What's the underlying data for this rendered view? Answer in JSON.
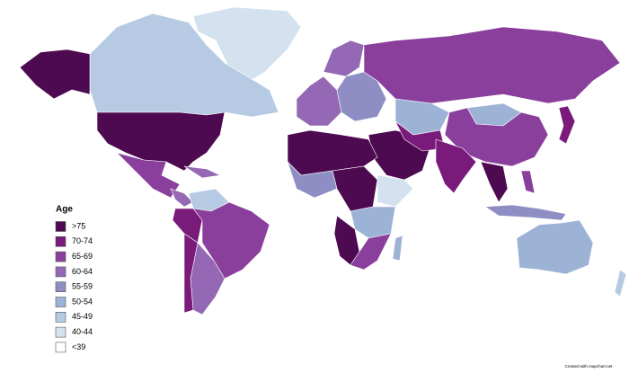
{
  "legend": {
    "title": "Age",
    "items": [
      {
        "label": ">75",
        "color": "#4d0a50"
      },
      {
        "label": "70-74",
        "color": "#7a1a7a"
      },
      {
        "label": "65-69",
        "color": "#8a3f9c"
      },
      {
        "label": "60-64",
        "color": "#9468b4"
      },
      {
        "label": "55-59",
        "color": "#8e8ec4"
      },
      {
        "label": "50-54",
        "color": "#9db3d6"
      },
      {
        "label": "45-49",
        "color": "#b6cbe3"
      },
      {
        "label": "40-44",
        "color": "#d4e2ef"
      },
      {
        "label": "<39",
        "color": "#ffffff"
      }
    ]
  },
  "credit": "Created with mapchart.net"
}
